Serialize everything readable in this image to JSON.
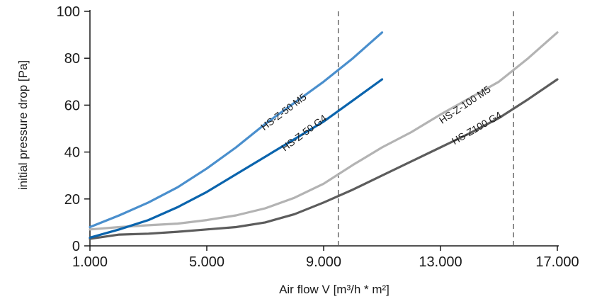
{
  "chart_data": {
    "type": "line",
    "title": "",
    "xlabel": "Air flow V [m³/h * m²]",
    "ylabel": "initial pressure drop [Pa]",
    "xlim": [
      1000,
      17000
    ],
    "ylim": [
      0,
      100
    ],
    "x_ticks": [
      1000,
      5000,
      9000,
      13000,
      17000
    ],
    "x_tick_labels": [
      "1.000",
      "5.000",
      "9.000",
      "13.000",
      "17.000"
    ],
    "y_ticks": [
      0,
      20,
      40,
      60,
      80,
      100
    ],
    "y_tick_labels": [
      "0",
      "20",
      "40",
      "60",
      "80",
      "100"
    ],
    "grid": false,
    "reference_lines_x": [
      9500,
      15500
    ],
    "series": [
      {
        "name": "HS-Z-50 M5",
        "color": "#4a8fcd",
        "x": [
          1000,
          2000,
          3000,
          4000,
          5000,
          6000,
          7000,
          8000,
          9000,
          10000,
          11000
        ],
        "y": [
          8,
          13,
          18.5,
          25,
          33,
          42,
          52,
          61,
          70,
          80,
          91
        ]
      },
      {
        "name": "HS-Z-50 G4",
        "color": "#0a64ad",
        "x": [
          1000,
          2000,
          3000,
          4000,
          5000,
          6000,
          7000,
          8000,
          9000,
          10000,
          11000
        ],
        "y": [
          3.5,
          7,
          11,
          16.5,
          23,
          30.5,
          38,
          45.5,
          53,
          62,
          71
        ]
      },
      {
        "name": "HS-Z-100 M5",
        "color": "#b3b3b3",
        "x": [
          1000,
          2000,
          3000,
          4000,
          5000,
          6000,
          7000,
          8000,
          9000,
          10000,
          11000,
          12000,
          13000,
          14000,
          15000,
          16000,
          17000
        ],
        "y": [
          7,
          8,
          8.8,
          9.5,
          11,
          13,
          16,
          20.5,
          26.5,
          34.5,
          42,
          48.5,
          56,
          63,
          70,
          80,
          91
        ]
      },
      {
        "name": "HS-Z100 G4",
        "color": "#5c5c5c",
        "x": [
          1000,
          2000,
          3000,
          4000,
          5000,
          6000,
          7000,
          8000,
          9000,
          10000,
          11000,
          12000,
          13000,
          14000,
          15000,
          16000,
          17000
        ],
        "y": [
          3,
          4.8,
          5.2,
          6,
          7,
          8,
          10,
          13.5,
          18.5,
          24,
          30,
          36,
          42,
          48,
          54.5,
          62.5,
          71
        ]
      }
    ],
    "annotations": [
      {
        "series": "HS-Z-50 M5",
        "text": "HS-Z-50 M5",
        "x": 7700,
        "y": 56,
        "angle": -37
      },
      {
        "series": "HS-Z-50 G4",
        "text": "HS-Z-50 G4",
        "x": 8400,
        "y": 47,
        "angle": -37
      },
      {
        "series": "HS-Z-100 M5",
        "text": "HS-Z-100 M5",
        "x": 13900,
        "y": 59,
        "angle": -34
      },
      {
        "series": "HS-Z100 G4",
        "text": "HS-Z100 G4",
        "x": 14300,
        "y": 49,
        "angle": -30
      }
    ]
  }
}
